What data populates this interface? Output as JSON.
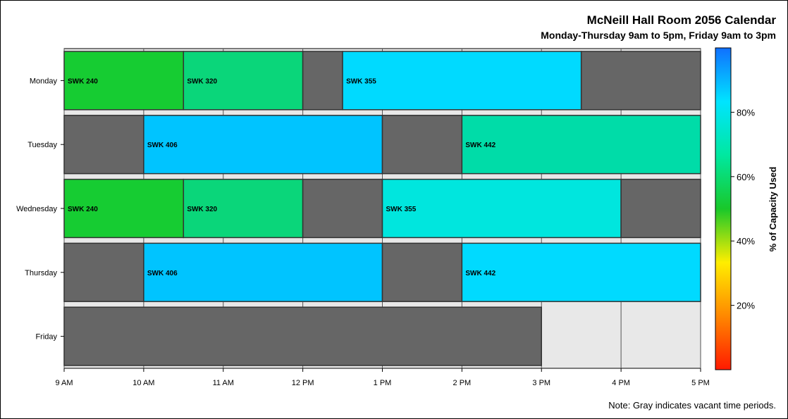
{
  "chart_data": {
    "type": "bar",
    "orientation": "horizontal",
    "stacked": true,
    "title": "McNeill Hall Room 2056 Calendar",
    "subtitle": "Monday-Thursday 9am to 5pm, Friday 9am to 3pm",
    "note": "Note: Gray indicates vacant time periods.",
    "colorbar_label": "% of Capacity Used",
    "colorbar_ticks": [
      "20%",
      "40%",
      "60%",
      "80%"
    ],
    "colorbar_tick_values": [
      20,
      40,
      60,
      80
    ],
    "colorbar_range": [
      0,
      100
    ],
    "colorbar_colors": [
      "#ff1a00",
      "#ff8800",
      "#ffee00",
      "#19c82a",
      "#00e8a0",
      "#00e4ff",
      "#1070ff"
    ],
    "x_ticks": [
      "9 AM",
      "10 AM",
      "11 AM",
      "12 PM",
      "1 PM",
      "2 PM",
      "3 PM",
      "4 PM",
      "5 PM"
    ],
    "x_range_hours": [
      9,
      17
    ],
    "grid": true,
    "vacant_color": "#666666",
    "background_color": "#e8e8e8",
    "days": [
      {
        "name": "Monday",
        "blocks": [
          {
            "start": 9,
            "end": 10.5,
            "label": "SWK 240",
            "color": "#16cc32"
          },
          {
            "start": 10.5,
            "end": 12,
            "label": "SWK 320",
            "color": "#0ad67a"
          },
          {
            "start": 12,
            "end": 12.5,
            "label": "",
            "color": "#666666"
          },
          {
            "start": 12.5,
            "end": 15.5,
            "label": "SWK 355",
            "color": "#00daff"
          },
          {
            "start": 15.5,
            "end": 17,
            "label": "",
            "color": "#666666"
          }
        ]
      },
      {
        "name": "Tuesday",
        "blocks": [
          {
            "start": 9,
            "end": 10,
            "label": "",
            "color": "#666666"
          },
          {
            "start": 10,
            "end": 13,
            "label": "SWK 406",
            "color": "#00c4ff"
          },
          {
            "start": 13,
            "end": 14,
            "label": "",
            "color": "#666666"
          },
          {
            "start": 14,
            "end": 17,
            "label": "SWK 442",
            "color": "#00dca8"
          }
        ]
      },
      {
        "name": "Wednesday",
        "blocks": [
          {
            "start": 9,
            "end": 10.5,
            "label": "SWK 240",
            "color": "#16cc32"
          },
          {
            "start": 10.5,
            "end": 12,
            "label": "SWK 320",
            "color": "#0ad67a"
          },
          {
            "start": 12,
            "end": 13,
            "label": "",
            "color": "#666666"
          },
          {
            "start": 13,
            "end": 16,
            "label": "SWK 355",
            "color": "#00e6de"
          },
          {
            "start": 16,
            "end": 17,
            "label": "",
            "color": "#666666"
          }
        ]
      },
      {
        "name": "Thursday",
        "blocks": [
          {
            "start": 9,
            "end": 10,
            "label": "",
            "color": "#666666"
          },
          {
            "start": 10,
            "end": 13,
            "label": "SWK 406",
            "color": "#00c4ff"
          },
          {
            "start": 13,
            "end": 14,
            "label": "",
            "color": "#666666"
          },
          {
            "start": 14,
            "end": 17,
            "label": "SWK 442",
            "color": "#00daff"
          }
        ]
      },
      {
        "name": "Friday",
        "blocks": [
          {
            "start": 9,
            "end": 15,
            "label": "",
            "color": "#666666"
          }
        ]
      }
    ]
  }
}
